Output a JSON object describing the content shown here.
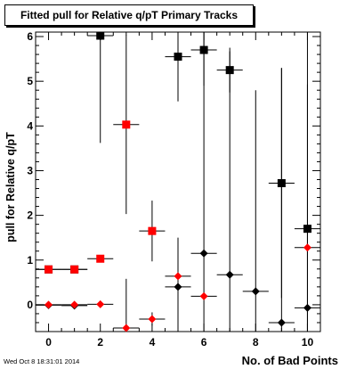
{
  "title": "Fitted pull for Relative q/pT Primary Tracks",
  "timestamp": "Wed Oct  8 18:31:01 2014",
  "colors": {
    "black_series": "#000000",
    "red_series": "#ff0000"
  },
  "chart_data": {
    "type": "scatter",
    "title": "Fitted pull for Relative q/pT Primary Tracks",
    "xlabel": "No. of Bad Points",
    "ylabel": "pull for Relative q/pT",
    "xlim": [
      -0.5,
      10.5
    ],
    "ylim": [
      -0.6,
      6.1
    ],
    "x_ticks": [
      0,
      2,
      4,
      6,
      8,
      10
    ],
    "y_ticks": [
      0,
      1,
      2,
      3,
      4,
      5,
      6
    ],
    "grid": false,
    "legend": false,
    "series": [
      {
        "marker": "square",
        "color": "black",
        "points": [
          {
            "x": 0,
            "y": 0.79,
            "err": 0.04,
            "xerr": 0.5
          },
          {
            "x": 1,
            "y": 0.79,
            "err": 0.04,
            "xerr": 0.5
          },
          {
            "x": 2,
            "y": 6.02,
            "err": 2.4,
            "xerr": 0.5
          },
          {
            "x": 5,
            "y": 5.55,
            "err": 1.0,
            "xerr": 0.5
          },
          {
            "x": 6,
            "y": 5.7,
            "err": 0.8,
            "xerr": 0.5
          },
          {
            "x": 7,
            "y": 5.25,
            "err": 0.5,
            "xerr": 0.5
          },
          {
            "x": 9,
            "y": 2.72,
            "err": 2.57,
            "xerr": 0.5
          },
          {
            "x": 10,
            "y": 1.7,
            "err": 4.9,
            "xerr": 0.5
          }
        ]
      },
      {
        "marker": "square",
        "color": "red",
        "points": [
          {
            "x": 0,
            "y": 0.79,
            "err": 0.04,
            "xerr": 0.5
          },
          {
            "x": 1,
            "y": 0.79,
            "err": 0.04,
            "xerr": 0.5
          },
          {
            "x": 2,
            "y": 1.03,
            "err": 0.06,
            "xerr": 0.5
          },
          {
            "x": 3,
            "y": 4.03,
            "err": 2.0,
            "xerr": 0.5
          },
          {
            "x": 4,
            "y": 1.65,
            "err": 0.68,
            "xerr": 0.5
          }
        ]
      },
      {
        "marker": "diamond",
        "color": "black",
        "points": [
          {
            "x": 0,
            "y": -0.01,
            "err": 0.04,
            "xerr": 0.5
          },
          {
            "x": 1,
            "y": -0.02,
            "err": 0.04,
            "xerr": 0.5
          },
          {
            "x": 5,
            "y": 0.4,
            "err": 1.1,
            "xerr": 0.5
          },
          {
            "x": 6,
            "y": 1.15,
            "err": 5.0,
            "xerr": 0.5
          },
          {
            "x": 7,
            "y": 0.67,
            "err": 5.0,
            "xerr": 0.5
          },
          {
            "x": 8,
            "y": 0.3,
            "err": 4.5,
            "xerr": 0.5
          },
          {
            "x": 9,
            "y": -0.4,
            "err": 5.7,
            "xerr": 0.5
          },
          {
            "x": 10,
            "y": -0.07,
            "err": 5.0,
            "xerr": 0.5
          }
        ]
      },
      {
        "marker": "diamond",
        "color": "red",
        "points": [
          {
            "x": 0,
            "y": 0.0,
            "err": 0.04,
            "xerr": 0.5
          },
          {
            "x": 1,
            "y": 0.0,
            "err": 0.04,
            "xerr": 0.5
          },
          {
            "x": 2,
            "y": 0.01,
            "err": 0.04,
            "xerr": 0.5
          },
          {
            "x": 3,
            "y": -0.52,
            "err": 1.1,
            "xerr": 0.5
          },
          {
            "x": 4,
            "y": -0.32,
            "err": 0.15,
            "xerr": 0.5
          },
          {
            "x": 5,
            "y": 0.64,
            "err": 0.08,
            "xerr": 0.5
          },
          {
            "x": 6,
            "y": 0.19,
            "err": 0.08,
            "xerr": 0.5
          },
          {
            "x": 10,
            "y": 1.28,
            "err": 0.1,
            "xerr": 0.5
          }
        ]
      }
    ]
  }
}
